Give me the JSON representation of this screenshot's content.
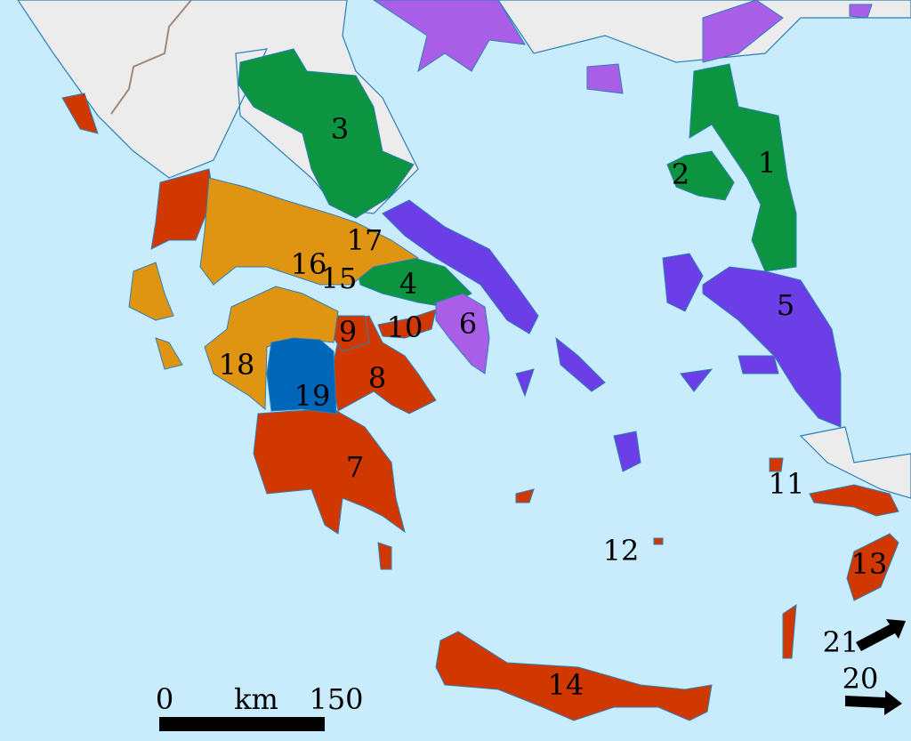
{
  "colors": {
    "sea": "#c8ecfc",
    "land": "#ececec",
    "green": "#0c9440",
    "violet": "#6b3ee8",
    "light_violet": "#a95ee8",
    "red": "#d03800",
    "orange": "#e09512",
    "blue": "#0066b8"
  },
  "region_labels": [
    "1",
    "2",
    "3",
    "4",
    "5",
    "6",
    "7",
    "8",
    "9",
    "10",
    "11",
    "12",
    "13",
    "14",
    "15",
    "16",
    "17",
    "18",
    "19",
    "20",
    "21"
  ],
  "scale_bar": {
    "start": "0",
    "unit": "km",
    "end": "150"
  }
}
